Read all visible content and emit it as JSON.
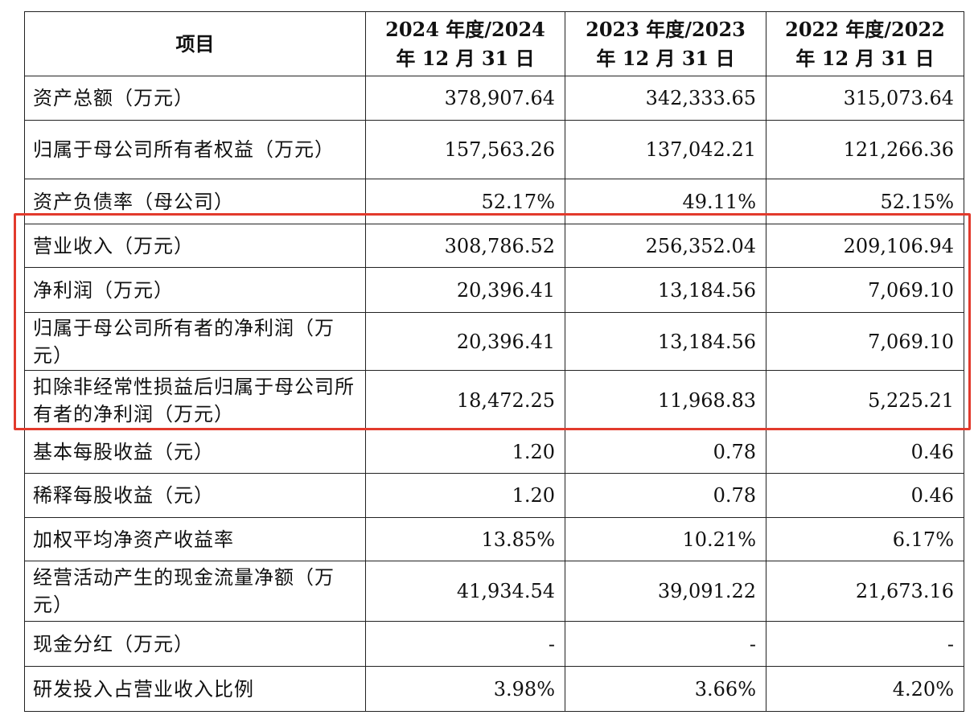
{
  "table": {
    "headers": [
      "项目",
      "2024 年度/2024 年 12 月 31 日",
      "2023 年度/2023 年 12 月 31 日",
      "2022 年度/2022 年 12 月 31 日"
    ],
    "rows": [
      {
        "label": "资产总额（万元）",
        "values": [
          "378,907.64",
          "342,333.65",
          "315,073.64"
        ]
      },
      {
        "label": "归属于母公司所有者权益（万元）",
        "values": [
          "157,563.26",
          "137,042.21",
          "121,266.36"
        ]
      },
      {
        "label": "资产负债率（母公司）",
        "values": [
          "52.17%",
          "49.11%",
          "52.15%"
        ]
      },
      {
        "label": "营业收入（万元）",
        "values": [
          "308,786.52",
          "256,352.04",
          "209,106.94"
        ]
      },
      {
        "label": "净利润（万元）",
        "values": [
          "20,396.41",
          "13,184.56",
          "7,069.10"
        ]
      },
      {
        "label": "归属于母公司所有者的净利润（万元）",
        "values": [
          "20,396.41",
          "13,184.56",
          "7,069.10"
        ]
      },
      {
        "label": "扣除非经常性损益后归属于母公司所有者的净利润（万元）",
        "values": [
          "18,472.25",
          "11,968.83",
          "5,225.21"
        ]
      },
      {
        "label": "基本每股收益（元）",
        "values": [
          "1.20",
          "0.78",
          "0.46"
        ]
      },
      {
        "label": "稀释每股收益（元）",
        "values": [
          "1.20",
          "0.78",
          "0.46"
        ]
      },
      {
        "label": "加权平均净资产收益率",
        "values": [
          "13.85%",
          "10.21%",
          "6.17%"
        ]
      },
      {
        "label": "经营活动产生的现金流量净额（万元）",
        "values": [
          "41,934.54",
          "39,091.22",
          "21,673.16"
        ]
      },
      {
        "label": "现金分红（万元）",
        "values": [
          "-",
          "-",
          "-"
        ]
      },
      {
        "label": "研发投入占营业收入比例",
        "values": [
          "3.98%",
          "3.66%",
          "4.20%"
        ]
      }
    ]
  },
  "highlight": {
    "color": "#e23a2c"
  },
  "colors": {
    "border": "#222222",
    "text": "#111111"
  }
}
